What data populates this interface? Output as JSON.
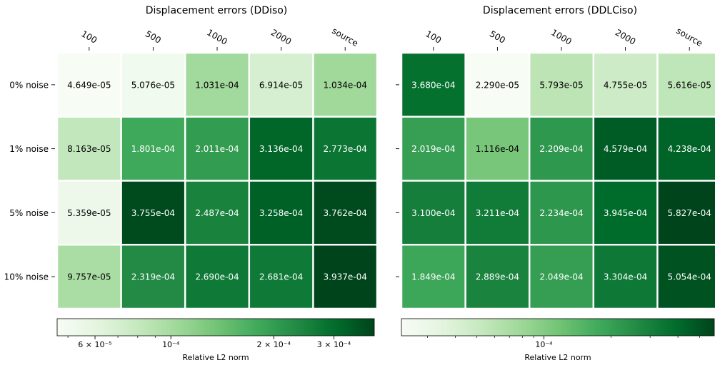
{
  "chart_data": [
    {
      "type": "heatmap",
      "title": "Displacement errors (DDiso)",
      "columns": [
        "100",
        "500",
        "1000",
        "2000",
        "source"
      ],
      "rows": [
        "0% noise",
        "1% noise",
        "5% noise",
        "10% noise"
      ],
      "values": [
        [
          4.649e-05,
          5.076e-05,
          0.0001031,
          6.914e-05,
          0.0001034
        ],
        [
          8.163e-05,
          0.0001801,
          0.0002011,
          0.0003136,
          0.0002773
        ],
        [
          5.359e-05,
          0.0003755,
          0.0002487,
          0.0003258,
          0.0003762
        ],
        [
          9.757e-05,
          0.0002319,
          0.000269,
          0.0002681,
          0.0003937
        ]
      ],
      "labels": [
        [
          "4.649e-05",
          "5.076e-05",
          "1.031e-04",
          "6.914e-05",
          "1.034e-04"
        ],
        [
          "8.163e-05",
          "1.801e-04",
          "2.011e-04",
          "3.136e-04",
          "2.773e-04"
        ],
        [
          "5.359e-05",
          "3.755e-04",
          "2.487e-04",
          "3.258e-04",
          "3.762e-04"
        ],
        [
          "9.757e-05",
          "2.319e-04",
          "2.690e-04",
          "2.681e-04",
          "3.937e-04"
        ]
      ],
      "colormap": "Greens",
      "color_scale": "log",
      "vmin": 4.649e-05,
      "vmax": 0.0003937,
      "colorbar": {
        "label": "Relative L2 norm",
        "ticks": [
          {
            "value": 6e-05,
            "label": "6 × 10⁻⁵"
          },
          {
            "value": 0.0001,
            "label": "10⁻⁴"
          },
          {
            "value": 0.0002,
            "label": "2 × 10⁻⁴"
          },
          {
            "value": 0.0003,
            "label": "3 × 10⁻⁴"
          }
        ],
        "minor_ticks": [
          5e-05,
          7e-05,
          8e-05,
          9e-05
        ]
      }
    },
    {
      "type": "heatmap",
      "title": "Displacement errors (DDLCiso)",
      "columns": [
        "100",
        "500",
        "1000",
        "2000",
        "source"
      ],
      "rows": [
        "0% noise",
        "1% noise",
        "5% noise",
        "10% noise"
      ],
      "values": [
        [
          0.000368,
          2.29e-05,
          5.793e-05,
          4.755e-05,
          5.616e-05
        ],
        [
          0.0002019,
          0.0001116,
          0.0002209,
          0.0004579,
          0.0004238
        ],
        [
          0.00031,
          0.0003211,
          0.0002234,
          0.0003945,
          0.0005827
        ],
        [
          0.0001849,
          0.0002889,
          0.0002049,
          0.0003304,
          0.0005054
        ]
      ],
      "labels": [
        [
          "3.680e-04",
          "2.290e-05",
          "5.793e-05",
          "4.755e-05",
          "5.616e-05"
        ],
        [
          "2.019e-04",
          "1.116e-04",
          "2.209e-04",
          "4.579e-04",
          "4.238e-04"
        ],
        [
          "3.100e-04",
          "3.211e-04",
          "2.234e-04",
          "3.945e-04",
          "5.827e-04"
        ],
        [
          "1.849e-04",
          "2.889e-04",
          "2.049e-04",
          "3.304e-04",
          "5.054e-04"
        ]
      ],
      "colormap": "Greens",
      "color_scale": "log",
      "vmin": 2.29e-05,
      "vmax": 0.0005827,
      "colorbar": {
        "label": "Relative L2 norm",
        "ticks": [
          {
            "value": 0.0001,
            "label": "10⁻⁴"
          }
        ],
        "minor_ticks": [
          3e-05,
          4e-05,
          5e-05,
          6e-05,
          7e-05,
          8e-05,
          9e-05,
          0.0002,
          0.0003,
          0.0004,
          0.0005
        ]
      }
    }
  ]
}
